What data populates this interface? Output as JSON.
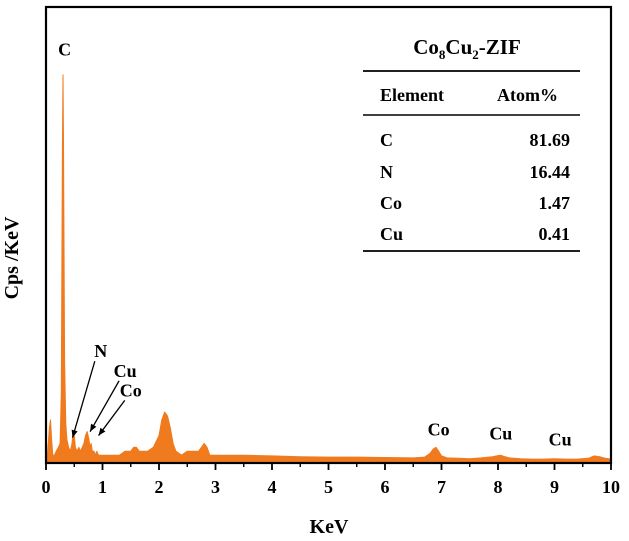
{
  "chart_data": {
    "type": "area",
    "title": "",
    "xlabel": "KeV",
    "ylabel": "Cps /KeV",
    "xlim": [
      0,
      10
    ],
    "ylim": [
      0,
      100
    ],
    "x_ticks": [
      "0",
      "1",
      "2",
      "3",
      "4",
      "5",
      "6",
      "7",
      "8",
      "9",
      "10"
    ],
    "grid": false,
    "fill_color": "#f07a1e",
    "series": [
      {
        "x": [
          0.0,
          0.03,
          0.06,
          0.08,
          0.1,
          0.12,
          0.15,
          0.18,
          0.22,
          0.25,
          0.27,
          0.29,
          0.3,
          0.31,
          0.33,
          0.35,
          0.37,
          0.4,
          0.43,
          0.46,
          0.48,
          0.5,
          0.52,
          0.55,
          0.58,
          0.61,
          0.64,
          0.67,
          0.7,
          0.73,
          0.76,
          0.78,
          0.8,
          0.82,
          0.85,
          0.88,
          0.9,
          0.93,
          0.96,
          1.0,
          1.1,
          1.2,
          1.3,
          1.4,
          1.5,
          1.55,
          1.6,
          1.65,
          1.7,
          1.8,
          1.9,
          2.0,
          2.05,
          2.1,
          2.15,
          2.2,
          2.25,
          2.3,
          2.4,
          2.5,
          2.6,
          2.7,
          2.75,
          2.8,
          2.85,
          2.9,
          3.0,
          3.1,
          3.2,
          3.5,
          4.0,
          4.5,
          5.0,
          5.5,
          6.0,
          6.5,
          6.7,
          6.8,
          6.85,
          6.9,
          6.95,
          7.0,
          7.1,
          7.3,
          7.5,
          7.7,
          7.9,
          8.0,
          8.05,
          8.1,
          8.2,
          8.4,
          8.6,
          8.8,
          9.0,
          9.2,
          9.4,
          9.6,
          9.7,
          9.8,
          9.9,
          10.0
        ],
        "y": [
          1,
          3,
          9,
          11,
          6,
          2,
          2,
          3,
          4,
          5,
          18,
          80,
          99,
          82,
          26,
          10,
          6,
          4,
          3,
          5,
          8,
          7,
          4,
          3,
          4,
          3,
          4,
          5,
          7,
          8,
          6,
          4,
          5,
          3,
          3,
          2,
          3,
          2,
          2,
          2,
          2,
          2,
          2,
          3,
          3,
          4,
          4,
          3,
          3,
          3,
          4,
          7,
          11,
          13,
          12,
          9,
          5,
          3,
          2,
          3,
          3,
          3,
          4,
          5,
          4,
          2,
          2,
          2,
          2,
          2,
          1.8,
          1.6,
          1.5,
          1.5,
          1.4,
          1.3,
          1.5,
          2.5,
          3.5,
          4,
          3,
          1.8,
          1.3,
          1.2,
          1.1,
          1.3,
          1.6,
          1.9,
          2,
          1.7,
          1.3,
          1.1,
          1.0,
          1.0,
          1.1,
          1.0,
          1.0,
          1.2,
          1.8,
          1.6,
          1.2,
          1.0
        ]
      }
    ],
    "annotations": [
      {
        "text": "C",
        "x": 0.33,
        "y": 104
      },
      {
        "text": "N",
        "x": 0.97,
        "y": 27,
        "arrow_to": [
          0.47,
          6.5
        ]
      },
      {
        "text": "Cu",
        "x": 1.4,
        "y": 22,
        "arrow_to": [
          0.78,
          8
        ]
      },
      {
        "text": "Co",
        "x": 1.5,
        "y": 17,
        "arrow_to": [
          0.93,
          7
        ]
      },
      {
        "text": "Co",
        "x": 6.95,
        "y": 7
      },
      {
        "text": "Cu",
        "x": 8.05,
        "y": 6
      },
      {
        "text": "Cu",
        "x": 9.1,
        "y": 4.5
      }
    ],
    "inset_table": {
      "title_parts": [
        {
          "text": "Co",
          "sub": false
        },
        {
          "text": "8",
          "sub": true
        },
        {
          "text": "Cu",
          "sub": false
        },
        {
          "text": "2",
          "sub": true
        },
        {
          "text": "-ZIF",
          "sub": false
        }
      ],
      "headers": [
        "Element",
        "Atom%"
      ],
      "rows": [
        [
          "C",
          "81.69"
        ],
        [
          "N",
          "16.44"
        ],
        [
          "Co",
          "1.47"
        ],
        [
          "Cu",
          "0.41"
        ]
      ]
    }
  }
}
